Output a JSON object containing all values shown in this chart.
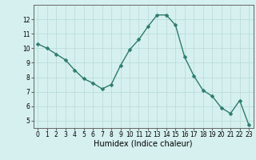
{
  "x": [
    0,
    1,
    2,
    3,
    4,
    5,
    6,
    7,
    8,
    9,
    10,
    11,
    12,
    13,
    14,
    15,
    16,
    17,
    18,
    19,
    20,
    21,
    22,
    23
  ],
  "y": [
    10.3,
    10.0,
    9.6,
    9.2,
    8.5,
    7.9,
    7.6,
    7.2,
    7.5,
    8.8,
    9.9,
    10.6,
    11.5,
    12.3,
    12.3,
    11.6,
    9.4,
    8.1,
    7.1,
    6.7,
    5.9,
    5.5,
    6.4,
    4.7
  ],
  "line_color": "#2e7c6e",
  "marker": "D",
  "marker_size": 2.5,
  "bg_color": "#d5f0ee",
  "grid_color": "#b5dbd8",
  "axis_color": "#666666",
  "xlabel": "Humidex (Indice chaleur)",
  "xlim": [
    -0.5,
    23.5
  ],
  "ylim": [
    4.5,
    13.0
  ],
  "yticks": [
    5,
    6,
    7,
    8,
    9,
    10,
    11,
    12
  ],
  "xticks": [
    0,
    1,
    2,
    3,
    4,
    5,
    6,
    7,
    8,
    9,
    10,
    11,
    12,
    13,
    14,
    15,
    16,
    17,
    18,
    19,
    20,
    21,
    22,
    23
  ],
  "tick_fontsize": 5.5,
  "label_fontsize": 7.0
}
